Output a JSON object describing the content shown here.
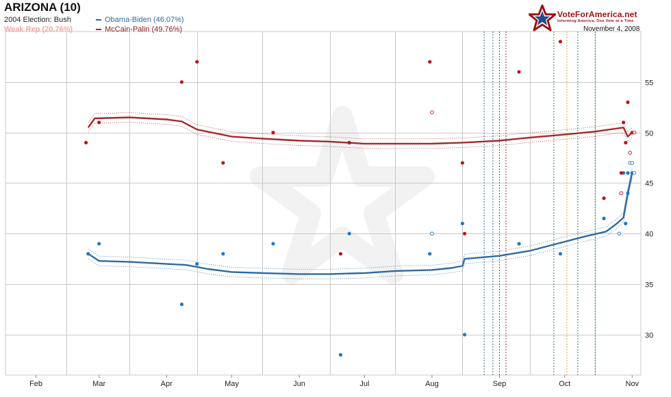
{
  "header": {
    "title": "ARIZONA (10)",
    "line_2004": "2004 Election: Bush",
    "weak_rep": "Weak Rep (20.76%)",
    "date": "November 4, 2008"
  },
  "brand": {
    "name": "VoteForAmerica.net",
    "tagline": "Informing America, One Vote at a Time",
    "logo_icon": "star-logo-icon"
  },
  "colors": {
    "dem": "#2c6aa0",
    "rep": "#a52a2a",
    "dem_dot": "#1f78c1",
    "rep_dot": "#c0121b",
    "grid": "#c8c8c8"
  },
  "chart_data": {
    "type": "line",
    "title": "ARIZONA (10)",
    "xlabel": "",
    "ylabel": "",
    "x_ticks": [
      "Feb",
      "Mar",
      "Apr",
      "May",
      "Jun",
      "Jul",
      "Aug",
      "Sep",
      "Oct",
      "Nov"
    ],
    "y_ticks": [
      30,
      35,
      40,
      45,
      50,
      55
    ],
    "xlim": [
      "2008-01-18",
      "2008-11-05"
    ],
    "ylim": [
      26,
      60
    ],
    "grid": true,
    "legend_position": "top-left",
    "series": [
      {
        "name": "Obama-Biden (46.07%)",
        "color": "#2c6aa0",
        "trend": [
          [
            "2008-02-25",
            38.0
          ],
          [
            "2008-03-01",
            37.3
          ],
          [
            "2008-03-15",
            37.2
          ],
          [
            "2008-04-01",
            37.0
          ],
          [
            "2008-04-10",
            36.9
          ],
          [
            "2008-04-20",
            36.5
          ],
          [
            "2008-05-01",
            36.2
          ],
          [
            "2008-05-15",
            36.1
          ],
          [
            "2008-06-01",
            36.0
          ],
          [
            "2008-06-15",
            36.0
          ],
          [
            "2008-07-01",
            36.1
          ],
          [
            "2008-07-15",
            36.3
          ],
          [
            "2008-08-01",
            36.4
          ],
          [
            "2008-08-10",
            36.6
          ],
          [
            "2008-08-15",
            36.8
          ],
          [
            "2008-08-16",
            37.5
          ],
          [
            "2008-09-01",
            37.8
          ],
          [
            "2008-09-15",
            38.3
          ],
          [
            "2008-10-01",
            39.2
          ],
          [
            "2008-10-10",
            39.7
          ],
          [
            "2008-10-20",
            40.2
          ],
          [
            "2008-10-25",
            41.0
          ],
          [
            "2008-10-28",
            41.6
          ],
          [
            "2008-10-30",
            44.0
          ],
          [
            "2008-11-01",
            46.0
          ]
        ],
        "polls": [
          [
            "2008-02-25",
            38
          ],
          [
            "2008-03-01",
            39
          ],
          [
            "2008-04-08",
            33
          ],
          [
            "2008-04-15",
            37
          ],
          [
            "2008-04-27",
            38
          ],
          [
            "2008-05-20",
            39
          ],
          [
            "2008-06-20",
            28
          ],
          [
            "2008-06-24",
            40
          ],
          [
            "2008-07-31",
            38
          ],
          [
            "2008-08-15",
            41
          ],
          [
            "2008-08-16",
            30
          ],
          [
            "2008-09-10",
            39
          ],
          [
            "2008-09-29",
            38
          ],
          [
            "2008-10-19",
            41.5
          ],
          [
            "2008-10-27",
            44
          ],
          [
            "2008-10-28",
            46
          ],
          [
            "2008-10-29",
            41
          ],
          [
            "2008-10-30",
            44
          ],
          [
            "2008-10-30",
            46
          ],
          [
            "2008-11-01",
            46
          ]
        ],
        "polls_open": [
          [
            "2008-08-01",
            40
          ],
          [
            "2008-10-26",
            40
          ],
          [
            "2008-10-27",
            44
          ],
          [
            "2008-10-31",
            47
          ],
          [
            "2008-11-01",
            47
          ],
          [
            "2008-11-02",
            46
          ]
        ]
      },
      {
        "name": "McCain-Palin (49.76%)",
        "color": "#a52a2a",
        "trend": [
          [
            "2008-02-25",
            50.5
          ],
          [
            "2008-02-28",
            51.4
          ],
          [
            "2008-03-15",
            51.5
          ],
          [
            "2008-04-01",
            51.3
          ],
          [
            "2008-04-08",
            51.1
          ],
          [
            "2008-04-15",
            50.3
          ],
          [
            "2008-05-01",
            49.6
          ],
          [
            "2008-05-15",
            49.4
          ],
          [
            "2008-06-01",
            49.2
          ],
          [
            "2008-06-15",
            49.1
          ],
          [
            "2008-07-01",
            48.9
          ],
          [
            "2008-07-15",
            48.9
          ],
          [
            "2008-08-01",
            48.9
          ],
          [
            "2008-08-15",
            49.0
          ],
          [
            "2008-09-01",
            49.2
          ],
          [
            "2008-09-15",
            49.5
          ],
          [
            "2008-10-01",
            49.8
          ],
          [
            "2008-10-15",
            50.1
          ],
          [
            "2008-10-25",
            50.4
          ],
          [
            "2008-10-28",
            50.5
          ],
          [
            "2008-10-30",
            49.6
          ],
          [
            "2008-11-01",
            50.0
          ]
        ],
        "polls": [
          [
            "2008-02-24",
            49
          ],
          [
            "2008-03-01",
            51
          ],
          [
            "2008-04-08",
            55
          ],
          [
            "2008-04-15",
            57
          ],
          [
            "2008-04-27",
            47
          ],
          [
            "2008-05-20",
            50
          ],
          [
            "2008-06-20",
            38
          ],
          [
            "2008-06-24",
            49
          ],
          [
            "2008-07-31",
            57
          ],
          [
            "2008-08-15",
            47
          ],
          [
            "2008-08-16",
            40
          ],
          [
            "2008-09-10",
            56
          ],
          [
            "2008-09-29",
            59
          ],
          [
            "2008-10-19",
            43.5
          ],
          [
            "2008-10-27",
            46
          ],
          [
            "2008-10-28",
            51
          ],
          [
            "2008-10-29",
            49
          ],
          [
            "2008-10-30",
            53
          ],
          [
            "2008-10-31",
            48
          ],
          [
            "2008-11-01",
            50
          ]
        ],
        "polls_open": [
          [
            "2008-08-01",
            52
          ],
          [
            "2008-10-27",
            44
          ],
          [
            "2008-10-31",
            48
          ],
          [
            "2008-11-02",
            50
          ]
        ]
      }
    ],
    "vertical_markers": [
      {
        "date": "2008-08-25",
        "color": "#2c6aa0"
      },
      {
        "date": "2008-08-29",
        "color": "#2c6aa0"
      },
      {
        "date": "2008-09-01",
        "color": "#a52a2a"
      },
      {
        "date": "2008-09-04",
        "color": "#a52a2a"
      },
      {
        "date": "2008-09-26",
        "color": "#2d8a2d"
      },
      {
        "date": "2008-10-02",
        "color": "#f0a030"
      },
      {
        "date": "2008-10-07",
        "color": "#2d8a2d"
      },
      {
        "date": "2008-10-15",
        "color": "#2d8a2d"
      }
    ]
  }
}
